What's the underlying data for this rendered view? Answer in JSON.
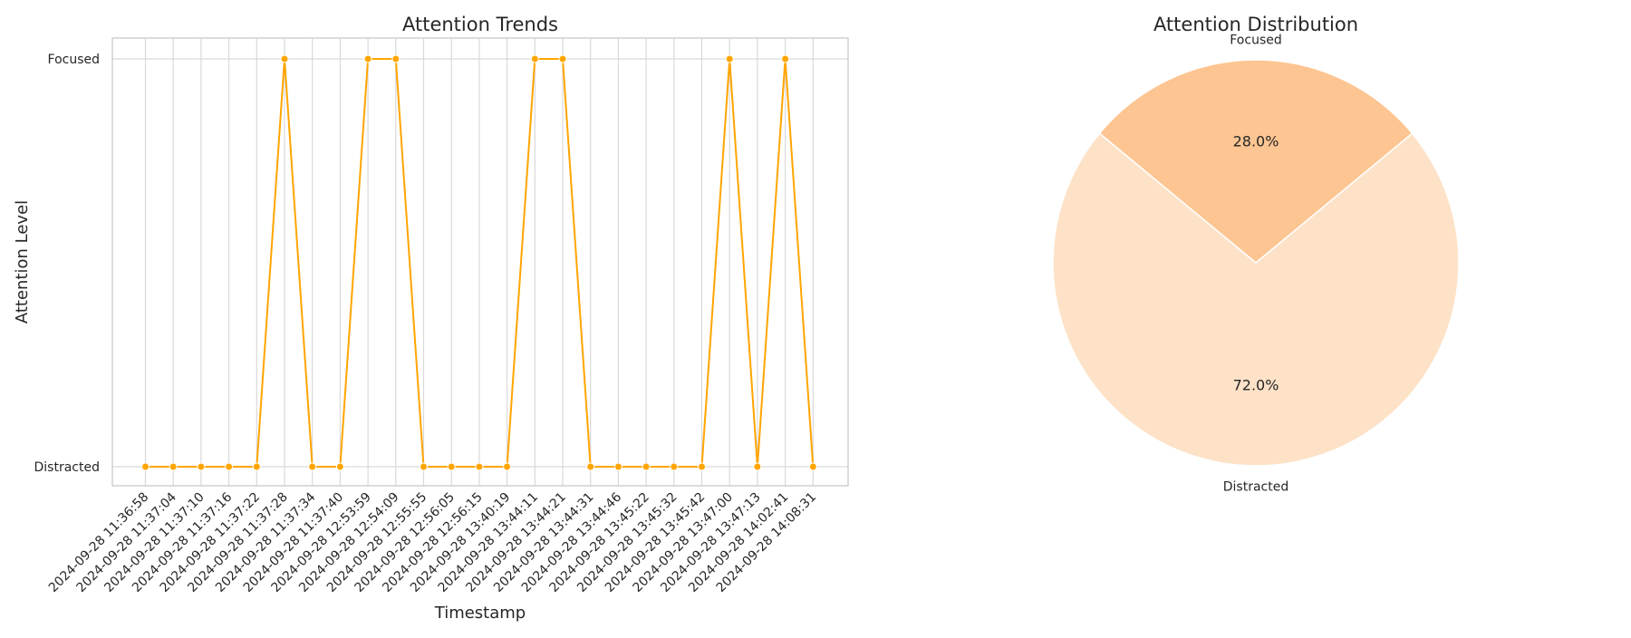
{
  "chart_data": [
    {
      "type": "line",
      "title": "Attention Trends",
      "xlabel": "Timestamp",
      "ylabel": "Attention Level",
      "y_categories": [
        "Distracted",
        "Focused"
      ],
      "x": [
        "2024-09-28 11:36:58",
        "2024-09-28 11:37:04",
        "2024-09-28 11:37:10",
        "2024-09-28 11:37:16",
        "2024-09-28 11:37:22",
        "2024-09-28 11:37:28",
        "2024-09-28 11:37:34",
        "2024-09-28 11:37:40",
        "2024-09-28 12:53:59",
        "2024-09-28 12:54:09",
        "2024-09-28 12:55:55",
        "2024-09-28 12:56:05",
        "2024-09-28 12:56:15",
        "2024-09-28 13:40:19",
        "2024-09-28 13:44:11",
        "2024-09-28 13:44:21",
        "2024-09-28 13:44:31",
        "2024-09-28 13:44:46",
        "2024-09-28 13:45:22",
        "2024-09-28 13:45:32",
        "2024-09-28 13:45:42",
        "2024-09-28 13:47:00",
        "2024-09-28 13:47:13",
        "2024-09-28 14:02:41",
        "2024-09-28 14:08:31"
      ],
      "values": [
        "Distracted",
        "Distracted",
        "Distracted",
        "Distracted",
        "Distracted",
        "Focused",
        "Distracted",
        "Distracted",
        "Focused",
        "Focused",
        "Distracted",
        "Distracted",
        "Distracted",
        "Distracted",
        "Focused",
        "Focused",
        "Distracted",
        "Distracted",
        "Distracted",
        "Distracted",
        "Distracted",
        "Focused",
        "Distracted",
        "Focused",
        "Distracted"
      ],
      "color": "#ffa500",
      "grid": true
    },
    {
      "type": "pie",
      "title": "Attention Distribution",
      "slices": [
        {
          "label": "Focused",
          "value": 28.0,
          "pct_label": "28.0%",
          "color": "#fdc591"
        },
        {
          "label": "Distracted",
          "value": 72.0,
          "pct_label": "72.0%",
          "color": "#fde2c8"
        }
      ]
    }
  ]
}
